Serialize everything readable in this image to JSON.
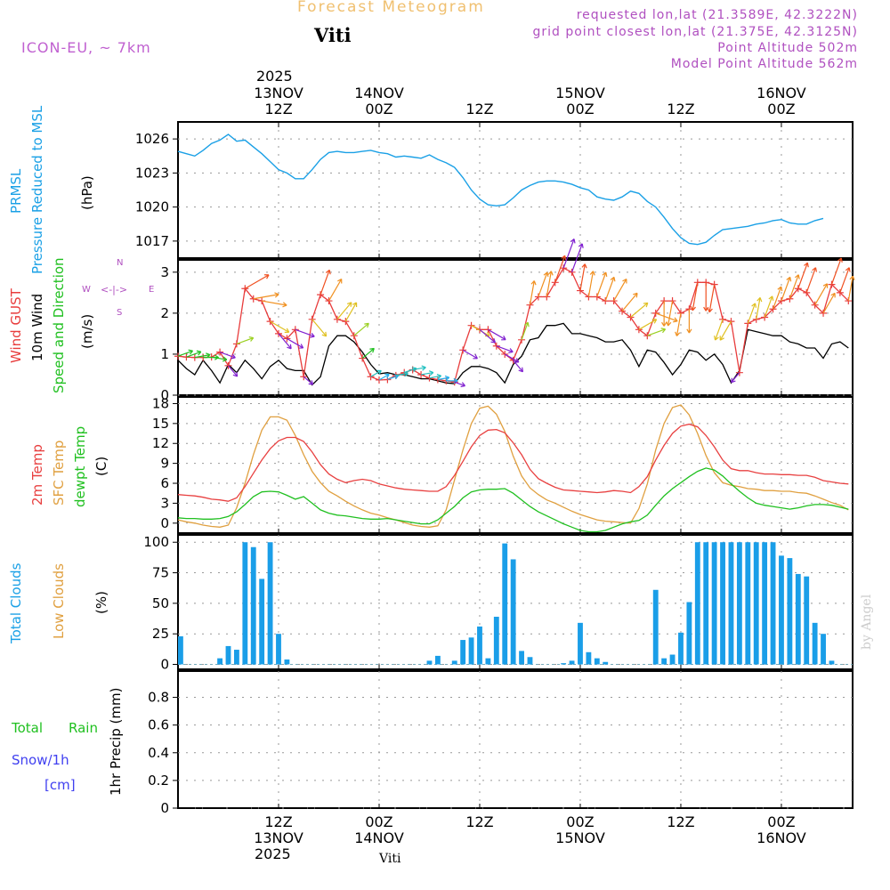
{
  "header": {
    "title": "Forecast Meteogram",
    "station": "Viti",
    "model": "ICON-EU, ~ 7km",
    "requested": "requested lon,lat (21.3589E, 42.3222N)",
    "gridpoint": "grid point closest lon,lat (21.375E, 42.3125N)",
    "point_alt": "Point Altitude 502m",
    "model_alt": "Model Point Altitude 562m"
  },
  "top_axis": {
    "year": "2025",
    "ticks": [
      {
        "hour": 12,
        "l1": "13NOV",
        "l2": "12Z"
      },
      {
        "hour": 24,
        "l1": "14NOV",
        "l2": "00Z"
      },
      {
        "hour": 36,
        "l1": "",
        "l2": "12Z"
      },
      {
        "hour": 48,
        "l1": "15NOV",
        "l2": "00Z"
      },
      {
        "hour": 60,
        "l1": "",
        "l2": "12Z"
      },
      {
        "hour": 72,
        "l1": "16NOV",
        "l2": "00Z"
      }
    ]
  },
  "bottom_axis": {
    "year": "2025",
    "station": "Viti",
    "ticks": [
      {
        "hour": 12,
        "l1": "12Z",
        "l2": "13NOV"
      },
      {
        "hour": 24,
        "l1": "00Z",
        "l2": "14NOV"
      },
      {
        "hour": 36,
        "l1": "12Z",
        "l2": ""
      },
      {
        "hour": 48,
        "l1": "00Z",
        "l2": "15NOV"
      },
      {
        "hour": 60,
        "l1": "12Z",
        "l2": ""
      },
      {
        "hour": 72,
        "l1": "00Z",
        "l2": "16NOV"
      }
    ]
  },
  "labels": {
    "prmsl": "PRMSL",
    "prmsl_long": "Pressure Reduced to MSL",
    "hpa": "(hPa)",
    "gust": "Wind GUST",
    "wind10": "10m Wind",
    "wind_sd": "Speed and Direction",
    "ms": "(m/s)",
    "compass_w": "W",
    "compass_e": "E",
    "compass_n": "N",
    "compass_s": "S",
    "compass_arrows": "<-|->",
    "temp2m": "2m Temp",
    "sfctemp": "SFC Temp",
    "dewpt": "dewpt Temp",
    "degc": "(C)",
    "totcld": "Total Clouds",
    "lowcld": "Low Clouds",
    "pct": "(%)",
    "total": "Total",
    "rain": "Rain",
    "snow": "Snow/1h",
    "cm": "[cm]",
    "precip": "1hr Precip (mm)",
    "watermark": "by Angel"
  },
  "colors": {
    "pressure": "#1aa0e6",
    "gust": "#e83c3c",
    "wind": "#000000",
    "temp": "#e84040",
    "sfc": "#e0a040",
    "dew": "#20c020",
    "cloud": "#1a9ee8",
    "rain": "#20c020",
    "snow": "#4040f0",
    "purple": "#b050c0"
  },
  "chart_data": [
    {
      "type": "line",
      "title": "PRMSL Pressure Reduced to MSL",
      "ylabel": "(hPa)",
      "ylim": [
        1015.5,
        1027.5
      ],
      "yticks": [
        1017,
        1020,
        1023,
        1026
      ],
      "x_start_hour": 0,
      "x_step_hours": 1,
      "values": [
        1024.9,
        1024.7,
        1024.5,
        1025.0,
        1025.6,
        1025.9,
        1026.4,
        1025.8,
        1025.9,
        1025.3,
        1024.7,
        1024.0,
        1023.3,
        1023.0,
        1022.5,
        1022.5,
        1023.3,
        1024.2,
        1024.8,
        1024.9,
        1024.8,
        1024.8,
        1024.9,
        1025.0,
        1024.8,
        1024.7,
        1024.4,
        1024.5,
        1024.4,
        1024.3,
        1024.6,
        1024.2,
        1023.9,
        1023.5,
        1022.6,
        1021.5,
        1020.7,
        1020.2,
        1020.1,
        1020.2,
        1020.8,
        1021.5,
        1021.9,
        1022.2,
        1022.3,
        1022.3,
        1022.2,
        1022.0,
        1021.7,
        1021.5,
        1020.9,
        1020.7,
        1020.6,
        1020.9,
        1021.4,
        1021.2,
        1020.5,
        1020.0,
        1019.1,
        1018.1,
        1017.3,
        1016.8,
        1016.7,
        1016.9,
        1017.5,
        1018.0,
        1018.1,
        1018.2,
        1018.3,
        1018.5,
        1018.6,
        1018.8,
        1018.9,
        1018.6,
        1018.5,
        1018.5,
        1018.8,
        1019.0
      ]
    },
    {
      "type": "line",
      "title": "Wind GUST / 10m Wind Speed and Direction",
      "ylabel": "(m/s)",
      "ylim": [
        0,
        3.3
      ],
      "yticks": [
        0,
        1,
        2,
        3
      ],
      "x_start_hour": 0,
      "x_step_hours": 1,
      "series": [
        {
          "name": "Wind GUST",
          "values": [
            0.95,
            0.93,
            0.92,
            0.92,
            0.93,
            1.05,
            0.72,
            1.25,
            2.6,
            2.35,
            2.3,
            1.8,
            1.5,
            1.38,
            1.6,
            0.45,
            1.85,
            2.45,
            2.3,
            1.85,
            1.8,
            1.45,
            0.9,
            0.45,
            0.37,
            0.38,
            0.48,
            0.55,
            0.62,
            0.5,
            0.42,
            0.38,
            0.35,
            0.32,
            1.1,
            1.7,
            1.6,
            1.6,
            1.2,
            1.0,
            0.85,
            1.35,
            2.2,
            2.4,
            2.4,
            2.75,
            3.1,
            3.0,
            2.55,
            2.4,
            2.4,
            2.3,
            2.3,
            2.05,
            1.9,
            1.6,
            1.45,
            2.0,
            2.3,
            2.3,
            2.0,
            2.1,
            2.75,
            2.75,
            2.7,
            1.85,
            1.8,
            0.55,
            1.75,
            1.85,
            1.9,
            2.1,
            2.3,
            2.35,
            2.6,
            2.5,
            2.2,
            2.0,
            2.7,
            2.5,
            2.3
          ]
        },
        {
          "name": "10m Wind",
          "values": [
            0.85,
            0.65,
            0.5,
            0.85,
            0.6,
            0.3,
            0.75,
            0.55,
            0.85,
            0.65,
            0.4,
            0.7,
            0.85,
            0.65,
            0.6,
            0.6,
            0.25,
            0.45,
            1.2,
            1.45,
            1.45,
            1.3,
            1.05,
            0.75,
            0.52,
            0.55,
            0.5,
            0.5,
            0.45,
            0.4,
            0.4,
            0.35,
            0.3,
            0.28,
            0.55,
            0.7,
            0.7,
            0.65,
            0.55,
            0.3,
            0.75,
            0.95,
            1.35,
            1.4,
            1.7,
            1.7,
            1.75,
            1.5,
            1.5,
            1.45,
            1.4,
            1.3,
            1.3,
            1.35,
            1.1,
            0.7,
            1.1,
            1.05,
            0.8,
            0.5,
            0.75,
            1.1,
            1.05,
            0.85,
            1.0,
            0.75,
            0.3,
            0.6,
            1.6,
            1.55,
            1.5,
            1.45,
            1.45,
            1.3,
            1.25,
            1.15,
            1.15,
            0.9,
            1.25,
            1.3,
            1.15
          ]
        }
      ],
      "wind_dir_deg": [
        250,
        250,
        260,
        270,
        280,
        290,
        320,
        250,
        240,
        260,
        280,
        300,
        320,
        300,
        290,
        310,
        320,
        200,
        210,
        220,
        210,
        230,
        230,
        240,
        240,
        250,
        260,
        250,
        260,
        260,
        260,
        260,
        270,
        290,
        300,
        300,
        310,
        300,
        290,
        300,
        320,
        200,
        190,
        200,
        190,
        200,
        200,
        200,
        190,
        190,
        200,
        200,
        210,
        220,
        230,
        240,
        250,
        290,
        0,
        10,
        10,
        0,
        10,
        0,
        10,
        20,
        30,
        40,
        200,
        190,
        200,
        200,
        200,
        200,
        200,
        200,
        210,
        210,
        200,
        200,
        190
      ]
    },
    {
      "type": "line",
      "title": "2m Temp / SFC Temp / dewpt Temp",
      "ylabel": "(C)",
      "ylim": [
        -1.5,
        19
      ],
      "yticks": [
        0,
        3,
        6,
        9,
        12,
        15,
        18
      ],
      "x_start_hour": 0,
      "x_step_hours": 1,
      "series": [
        {
          "name": "2m Temp",
          "values": [
            4.3,
            4.2,
            4.1,
            3.9,
            3.6,
            3.5,
            3.3,
            3.8,
            5.5,
            7.5,
            9.5,
            11.2,
            12.4,
            12.9,
            12.9,
            12.3,
            10.7,
            8.8,
            7.4,
            6.6,
            6.1,
            6.4,
            6.6,
            6.4,
            5.9,
            5.6,
            5.3,
            5.1,
            5.0,
            4.9,
            4.8,
            4.8,
            5.5,
            7.2,
            9.3,
            11.5,
            13.2,
            14.0,
            14.1,
            13.6,
            12.1,
            10.3,
            8.1,
            6.7,
            6.0,
            5.4,
            5.0,
            4.9,
            4.8,
            4.7,
            4.6,
            4.7,
            4.9,
            4.8,
            4.6,
            5.5,
            7.0,
            9.5,
            11.7,
            13.5,
            14.6,
            14.9,
            14.5,
            13.2,
            11.5,
            9.5,
            8.2,
            7.9,
            7.9,
            7.6,
            7.4,
            7.4,
            7.3,
            7.3,
            7.2,
            7.2,
            6.9,
            6.4,
            6.2,
            6.0,
            5.9
          ]
        },
        {
          "name": "SFC Temp",
          "values": [
            0.5,
            0.2,
            0.0,
            -0.3,
            -0.5,
            -0.6,
            -0.3,
            2.3,
            6.0,
            10.3,
            14.0,
            16.0,
            16.0,
            15.5,
            13.2,
            10.3,
            7.8,
            6.1,
            4.8,
            4.1,
            3.3,
            2.6,
            2.0,
            1.5,
            1.2,
            0.8,
            0.5,
            0.1,
            -0.3,
            -0.5,
            -0.6,
            -0.4,
            2.0,
            6.5,
            11.0,
            15.0,
            17.3,
            17.6,
            16.4,
            13.8,
            10.1,
            7.1,
            5.3,
            4.3,
            3.5,
            3.0,
            2.4,
            1.8,
            1.3,
            0.9,
            0.5,
            0.3,
            0.2,
            0.1,
            0.0,
            2.2,
            5.9,
            11.0,
            15.0,
            17.4,
            17.8,
            16.3,
            13.5,
            10.2,
            7.6,
            6.1,
            5.7,
            5.5,
            5.2,
            5.1,
            4.9,
            4.9,
            4.8,
            4.8,
            4.6,
            4.5,
            4.1,
            3.6,
            3.1,
            2.7,
            2.0
          ]
        },
        {
          "name": "dewpt Temp",
          "values": [
            0.8,
            0.7,
            0.7,
            0.6,
            0.6,
            0.7,
            1.0,
            1.7,
            2.8,
            4.0,
            4.7,
            4.8,
            4.7,
            4.2,
            3.6,
            4.0,
            3.0,
            2.0,
            1.5,
            1.2,
            1.1,
            0.9,
            0.7,
            0.6,
            0.6,
            0.7,
            0.5,
            0.3,
            0.1,
            -0.1,
            -0.1,
            0.5,
            1.5,
            2.5,
            3.8,
            4.7,
            5.0,
            5.1,
            5.1,
            5.2,
            4.5,
            3.5,
            2.5,
            1.7,
            1.1,
            0.5,
            -0.1,
            -0.6,
            -1.1,
            -1.3,
            -1.3,
            -1.1,
            -0.6,
            -0.1,
            0.2,
            0.4,
            1.2,
            2.7,
            4.1,
            5.2,
            6.1,
            7.0,
            7.8,
            8.3,
            8.0,
            7.1,
            5.9,
            4.8,
            3.8,
            3.0,
            2.7,
            2.5,
            2.3,
            2.1,
            2.3,
            2.6,
            2.8,
            2.8,
            2.7,
            2.4,
            2.1
          ]
        }
      ]
    },
    {
      "type": "bar",
      "title": "Total Clouds / Low Clouds",
      "ylabel": "(%)",
      "ylim": [
        -4,
        106
      ],
      "yticks": [
        0,
        25,
        50,
        75,
        100
      ],
      "x_start_hour": 0,
      "x_step_hours": 1,
      "series": [
        {
          "name": "Total Clouds",
          "values": [
            23,
            0,
            0,
            0,
            0,
            5,
            15,
            12,
            100,
            96,
            70,
            100,
            25,
            4,
            0,
            0,
            0,
            0,
            0,
            0,
            0,
            0,
            0,
            0,
            0,
            0,
            0,
            0,
            0,
            0,
            3,
            7,
            0,
            3,
            20,
            22,
            31,
            5,
            39,
            99,
            86,
            11,
            6,
            0,
            0,
            0,
            1,
            3,
            34,
            10,
            5,
            2,
            0,
            0,
            0,
            0,
            0,
            61,
            5,
            8,
            26,
            51,
            100,
            100,
            100,
            100,
            100,
            100,
            100,
            100,
            100,
            100,
            89,
            87,
            74,
            72,
            34,
            25,
            3
          ]
        }
      ]
    },
    {
      "type": "bar",
      "title": "Total Rain / Snow/1h [cm]",
      "ylabel": "1hr Precip (mm)",
      "ylim": [
        0,
        0.99
      ],
      "yticks": [
        0,
        0.2,
        0.4,
        0.6,
        0.8
      ],
      "yticklabels": [
        "0",
        "0.2",
        "0.4",
        "0.6",
        "0.8"
      ],
      "x_start_hour": 0,
      "x_step_hours": 1,
      "series": [
        {
          "name": "Total Rain",
          "values": []
        },
        {
          "name": "Snow/1h",
          "values": []
        }
      ]
    }
  ]
}
